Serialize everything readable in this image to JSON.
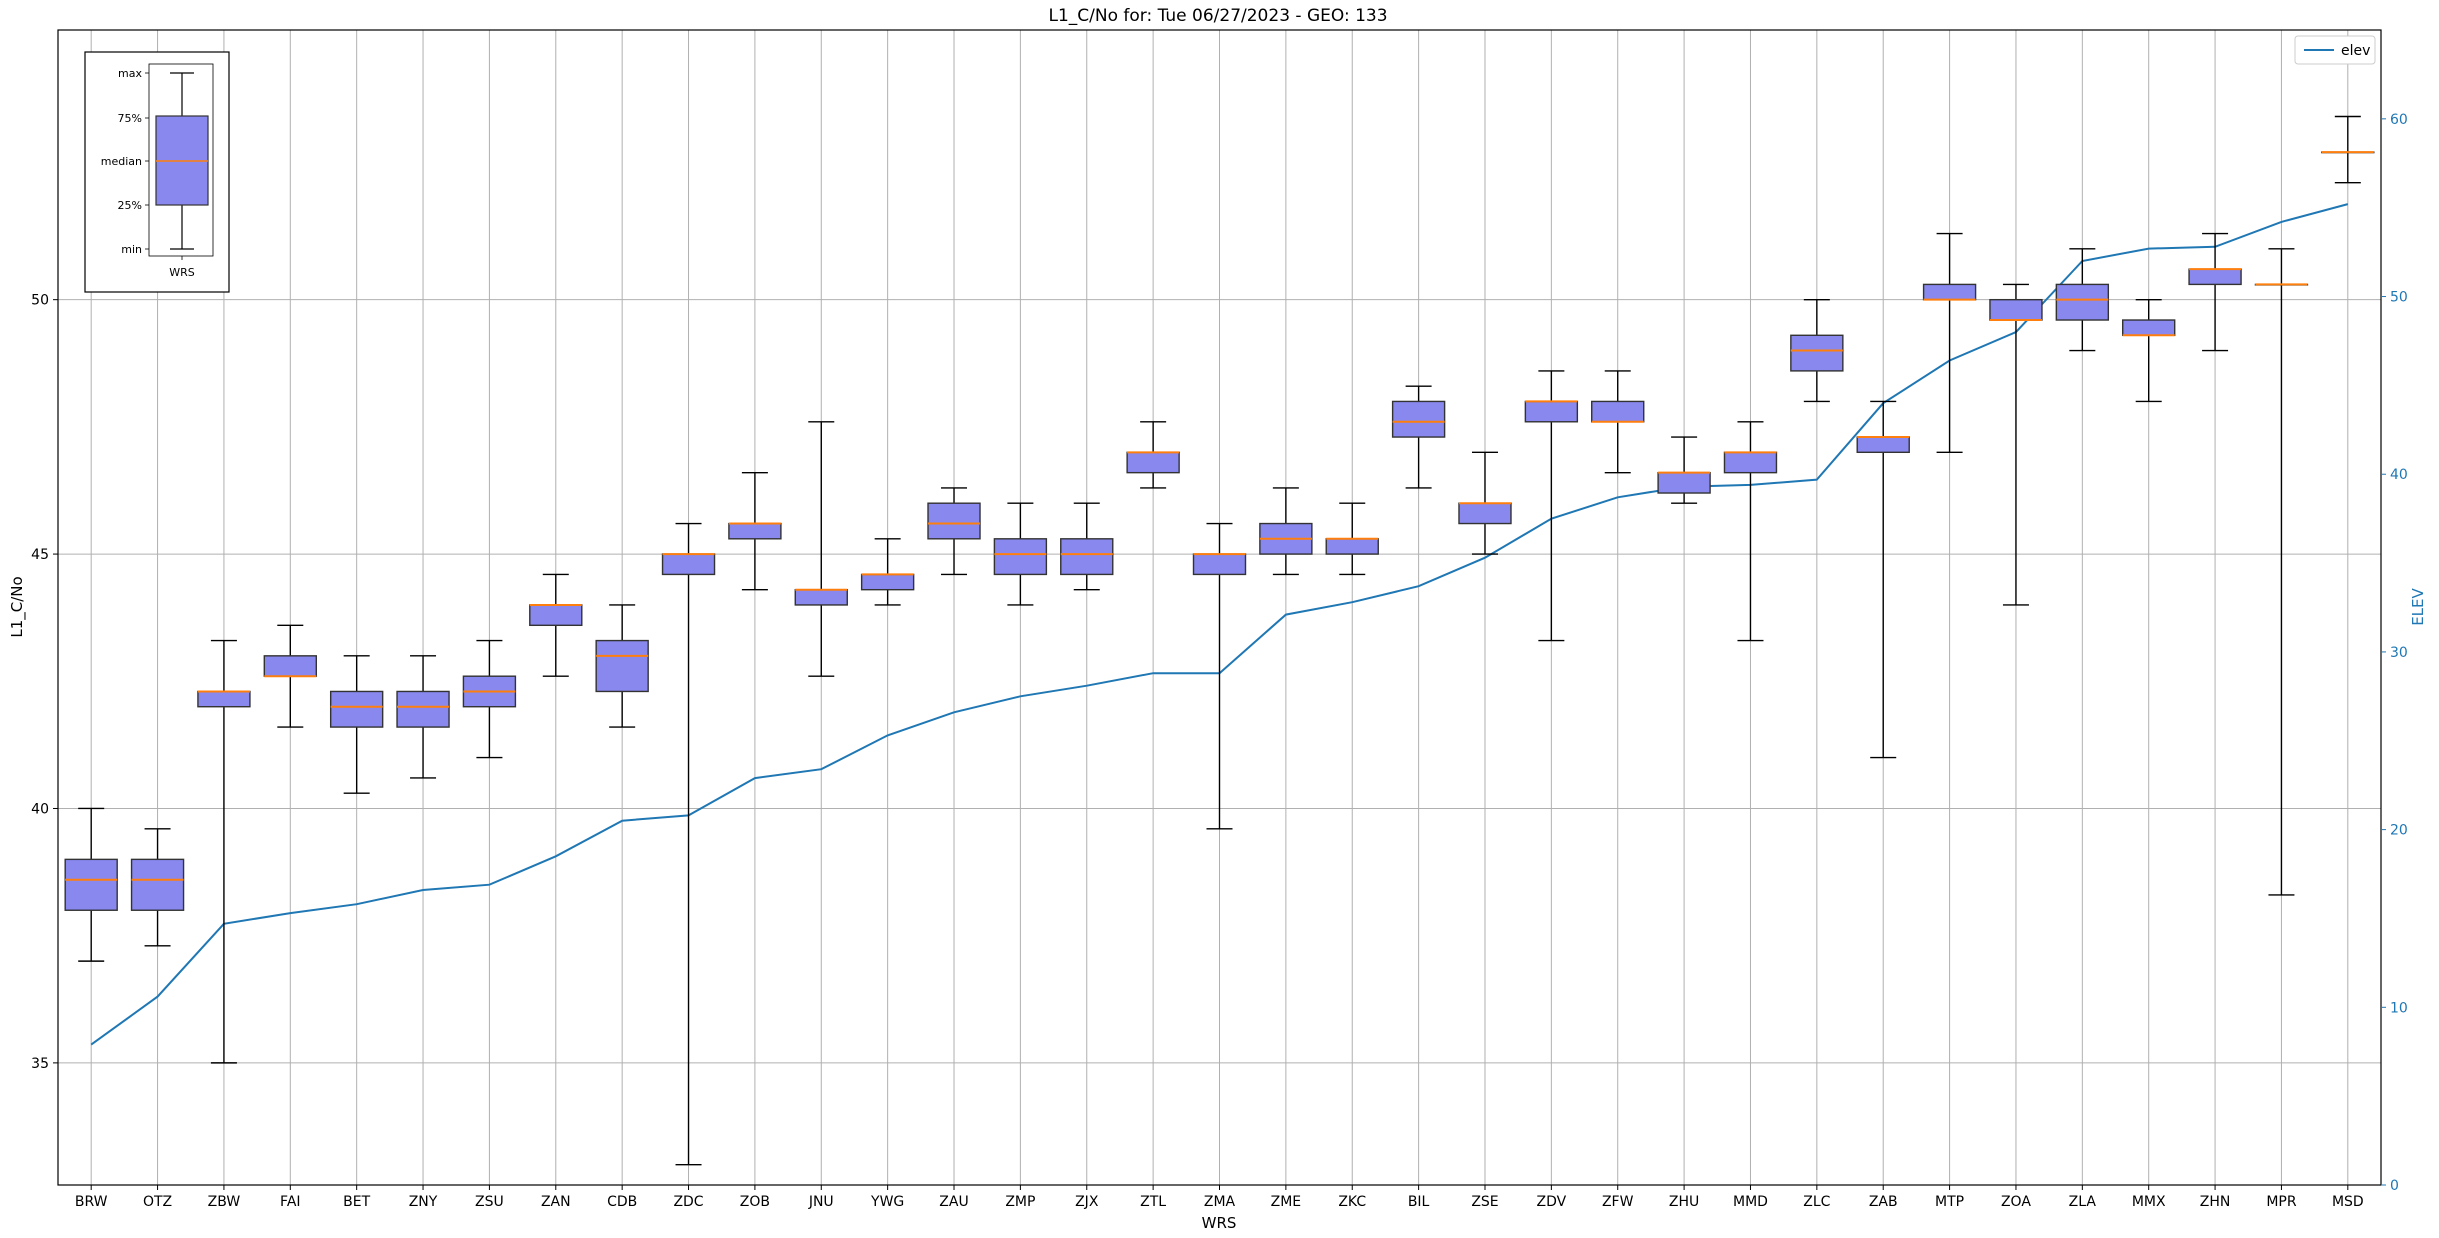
{
  "chart_data": {
    "type": "box",
    "title": "L1_C/No for: Tue 06/27/2023 - GEO: 133",
    "xlabel": "WRS",
    "ylabel": "L1_C/No",
    "y2label": "ELEV",
    "ylim": [
      32.6,
      55.3
    ],
    "y2lim": [
      0,
      65
    ],
    "yticks": [
      35,
      40,
      45,
      50
    ],
    "y2ticks": [
      0,
      10,
      20,
      30,
      40,
      50,
      60
    ],
    "grid": true,
    "legend": {
      "entries": [
        {
          "label": "elev",
          "color": "#1f77b4"
        }
      ],
      "placement": "top-right"
    },
    "colors": {
      "box_fill": "#8888ee",
      "median": "#ff7f0e",
      "line": "#1f77b4",
      "axis": "#000000",
      "grid": "#b0b0b0"
    },
    "boxes": [
      {
        "label": "BRW",
        "min": 37.0,
        "q1": 38.0,
        "median": 38.6,
        "q3": 39.0,
        "max": 40.0
      },
      {
        "label": "OTZ",
        "min": 37.3,
        "q1": 38.0,
        "median": 38.6,
        "q3": 39.0,
        "max": 39.6
      },
      {
        "label": "ZBW",
        "min": 35.0,
        "q1": 42.0,
        "median": 42.3,
        "q3": 42.3,
        "max": 43.3
      },
      {
        "label": "FAI",
        "min": 41.6,
        "q1": 42.6,
        "median": 42.6,
        "q3": 43.0,
        "max": 43.6
      },
      {
        "label": "BET",
        "min": 40.3,
        "q1": 41.6,
        "median": 42.0,
        "q3": 42.3,
        "max": 43.0
      },
      {
        "label": "ZNY",
        "min": 40.6,
        "q1": 41.6,
        "median": 42.0,
        "q3": 42.3,
        "max": 43.0
      },
      {
        "label": "ZSU",
        "min": 41.0,
        "q1": 42.0,
        "median": 42.3,
        "q3": 42.6,
        "max": 43.3
      },
      {
        "label": "ZAN",
        "min": 42.6,
        "q1": 43.6,
        "median": 44.0,
        "q3": 44.0,
        "max": 44.6
      },
      {
        "label": "CDB",
        "min": 41.6,
        "q1": 42.3,
        "median": 43.0,
        "q3": 43.3,
        "max": 44.0
      },
      {
        "label": "ZDC",
        "min": 33.0,
        "q1": 44.6,
        "median": 45.0,
        "q3": 45.0,
        "max": 45.6
      },
      {
        "label": "ZOB",
        "min": 44.3,
        "q1": 45.3,
        "median": 45.6,
        "q3": 45.6,
        "max": 46.6
      },
      {
        "label": "JNU",
        "min": 42.6,
        "q1": 44.0,
        "median": 44.3,
        "q3": 44.3,
        "max": 47.6
      },
      {
        "label": "YWG",
        "min": 44.0,
        "q1": 44.3,
        "median": 44.6,
        "q3": 44.6,
        "max": 45.3
      },
      {
        "label": "ZAU",
        "min": 44.6,
        "q1": 45.3,
        "median": 45.6,
        "q3": 46.0,
        "max": 46.3
      },
      {
        "label": "ZMP",
        "min": 44.0,
        "q1": 44.6,
        "median": 45.0,
        "q3": 45.3,
        "max": 46.0
      },
      {
        "label": "ZJX",
        "min": 44.3,
        "q1": 44.6,
        "median": 45.0,
        "q3": 45.3,
        "max": 46.0
      },
      {
        "label": "ZTL",
        "min": 46.3,
        "q1": 46.6,
        "median": 47.0,
        "q3": 47.0,
        "max": 47.6
      },
      {
        "label": "ZMA",
        "min": 39.6,
        "q1": 44.6,
        "median": 45.0,
        "q3": 45.0,
        "max": 45.6
      },
      {
        "label": "ZME",
        "min": 44.6,
        "q1": 45.0,
        "median": 45.3,
        "q3": 45.6,
        "max": 46.3
      },
      {
        "label": "ZKC",
        "min": 44.6,
        "q1": 45.0,
        "median": 45.3,
        "q3": 45.3,
        "max": 46.0
      },
      {
        "label": "BIL",
        "min": 46.3,
        "q1": 47.3,
        "median": 47.6,
        "q3": 48.0,
        "max": 48.3
      },
      {
        "label": "ZSE",
        "min": 45.0,
        "q1": 45.6,
        "median": 46.0,
        "q3": 46.0,
        "max": 47.0
      },
      {
        "label": "ZDV",
        "min": 43.3,
        "q1": 47.6,
        "median": 48.0,
        "q3": 48.0,
        "max": 48.6
      },
      {
        "label": "ZFW",
        "min": 46.6,
        "q1": 47.6,
        "median": 47.6,
        "q3": 48.0,
        "max": 48.6
      },
      {
        "label": "ZHU",
        "min": 46.0,
        "q1": 46.2,
        "median": 46.6,
        "q3": 46.6,
        "max": 47.3
      },
      {
        "label": "MMD",
        "min": 43.3,
        "q1": 46.6,
        "median": 47.0,
        "q3": 47.0,
        "max": 47.6
      },
      {
        "label": "ZLC",
        "min": 48.0,
        "q1": 48.6,
        "median": 49.0,
        "q3": 49.3,
        "max": 50.0
      },
      {
        "label": "ZAB",
        "min": 41.0,
        "q1": 47.0,
        "median": 47.3,
        "q3": 47.3,
        "max": 48.0
      },
      {
        "label": "MTP",
        "min": 47.0,
        "q1": 50.0,
        "median": 50.0,
        "q3": 50.3,
        "max": 51.3
      },
      {
        "label": "ZOA",
        "min": 44.0,
        "q1": 49.6,
        "median": 49.6,
        "q3": 50.0,
        "max": 50.3
      },
      {
        "label": "ZLA",
        "min": 49.0,
        "q1": 49.6,
        "median": 50.0,
        "q3": 50.3,
        "max": 51.0
      },
      {
        "label": "MMX",
        "min": 48.0,
        "q1": 49.3,
        "median": 49.3,
        "q3": 49.6,
        "max": 50.0
      },
      {
        "label": "ZHN",
        "min": 49.0,
        "q1": 50.3,
        "median": 50.6,
        "q3": 50.6,
        "max": 51.3
      },
      {
        "label": "MPR",
        "min": 38.3,
        "q1": 50.3,
        "median": 50.3,
        "q3": 50.3,
        "max": 51.0
      },
      {
        "label": "MSD",
        "min": 52.3,
        "q1": 52.9,
        "median": 52.9,
        "q3": 52.9,
        "max": 53.6
      }
    ],
    "elev": [
      7.9,
      10.6,
      14.7,
      15.3,
      15.8,
      16.6,
      16.9,
      18.5,
      20.5,
      20.8,
      22.9,
      23.4,
      25.3,
      26.6,
      27.5,
      28.1,
      28.8,
      28.8,
      32.1,
      32.8,
      33.7,
      35.3,
      37.5,
      38.7,
      39.3,
      39.4,
      39.7,
      44.0,
      46.4,
      48.0,
      52.0,
      52.7,
      52.8,
      54.2,
      55.2
    ],
    "inset": {
      "labels": [
        "max",
        "75%",
        "median",
        "25%",
        "min"
      ],
      "xlabel": "WRS"
    }
  }
}
